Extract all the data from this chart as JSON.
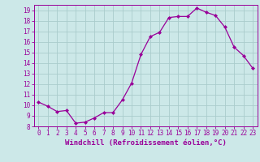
{
  "x": [
    0,
    1,
    2,
    3,
    4,
    5,
    6,
    7,
    8,
    9,
    10,
    11,
    12,
    13,
    14,
    15,
    16,
    17,
    18,
    19,
    20,
    21,
    22,
    23
  ],
  "y": [
    10.3,
    9.9,
    9.4,
    9.5,
    8.3,
    8.4,
    8.8,
    9.3,
    9.3,
    10.5,
    12.1,
    14.8,
    16.5,
    16.9,
    18.3,
    18.4,
    18.4,
    19.2,
    18.8,
    18.5,
    17.4,
    15.5,
    14.7,
    13.5
  ],
  "line_color": "#990099",
  "marker": "D",
  "marker_size": 2.0,
  "bg_color": "#cce8e8",
  "grid_color": "#aacccc",
  "ylim": [
    8,
    19.5
  ],
  "xlim": [
    -0.5,
    23.5
  ],
  "yticks": [
    8,
    9,
    10,
    11,
    12,
    13,
    14,
    15,
    16,
    17,
    18,
    19
  ],
  "xticks": [
    0,
    1,
    2,
    3,
    4,
    5,
    6,
    7,
    8,
    9,
    10,
    11,
    12,
    13,
    14,
    15,
    16,
    17,
    18,
    19,
    20,
    21,
    22,
    23
  ],
  "tick_color": "#990099",
  "label_color": "#990099",
  "tick_fontsize": 5.5,
  "xlabel_fontsize": 6.5,
  "xlabel": "Windchill (Refroidissement éolien,°C)"
}
